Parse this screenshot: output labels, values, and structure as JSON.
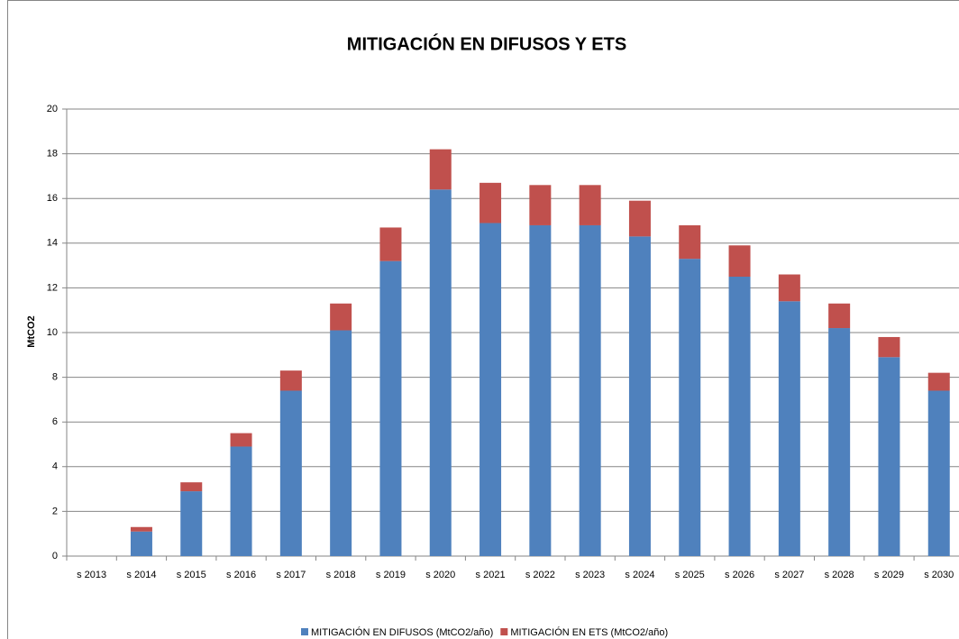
{
  "chart_data": {
    "type": "stacked_bar",
    "title": "MITIGACIÓN EN DIFUSOS Y ETS",
    "y_label": "MtCO2",
    "categories": [
      "s 2013",
      "s 2014",
      "s 2015",
      "s 2016",
      "s 2017",
      "s 2018",
      "s 2019",
      "s 2020",
      "s 2021",
      "s 2022",
      "s 2023",
      "s 2024",
      "s 2025",
      "s 2026",
      "s 2027",
      "s 2028",
      "s 2029",
      "s 2030"
    ],
    "series": [
      {
        "name": "MITIGACIÓN EN DIFUSOS (MtCO2/año)",
        "color": "#4f81bd",
        "values": [
          0,
          1.1,
          2.9,
          4.9,
          7.4,
          10.1,
          13.2,
          16.4,
          14.9,
          14.8,
          14.8,
          14.3,
          13.3,
          12.5,
          11.4,
          10.2,
          8.9,
          7.4
        ]
      },
      {
        "name": "MITIGACIÓN EN ETS (MtCO2/año)",
        "color": "#c0504d",
        "values": [
          0,
          0.2,
          0.4,
          0.6,
          0.9,
          1.2,
          1.5,
          1.8,
          1.8,
          1.8,
          1.8,
          1.6,
          1.5,
          1.4,
          1.2,
          1.1,
          0.9,
          0.8
        ]
      }
    ],
    "ylim": [
      0,
      20
    ],
    "yticks": [
      0,
      2,
      4,
      6,
      8,
      10,
      12,
      14,
      16,
      18,
      20
    ],
    "grid": true,
    "legend": "bottom"
  }
}
